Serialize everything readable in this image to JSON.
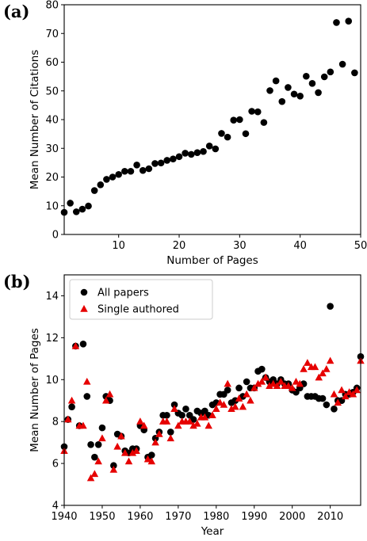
{
  "chart_data": [
    {
      "type": "scatter",
      "panel_label": "(a)",
      "xlabel": "Number of Pages",
      "ylabel": "Mean Number of Citations",
      "xlim": [
        1,
        50
      ],
      "ylim": [
        0,
        80
      ],
      "xticks": [
        10,
        20,
        30,
        40,
        50
      ],
      "yticks": [
        0,
        10,
        20,
        30,
        40,
        50,
        60,
        70,
        80
      ],
      "grid": false,
      "series": [
        {
          "color": "#000000",
          "marker": "circle",
          "points": [
            [
              1,
              7.7
            ],
            [
              2,
              10.9
            ],
            [
              3,
              7.9
            ],
            [
              4,
              8.8
            ],
            [
              5,
              9.9
            ],
            [
              6,
              15.3
            ],
            [
              7,
              17.3
            ],
            [
              8,
              19.2
            ],
            [
              9,
              20.0
            ],
            [
              10,
              20.9
            ],
            [
              11,
              22.0
            ],
            [
              12,
              22.0
            ],
            [
              13,
              24.2
            ],
            [
              14,
              22.3
            ],
            [
              15,
              22.9
            ],
            [
              16,
              24.7
            ],
            [
              17,
              24.9
            ],
            [
              18,
              25.8
            ],
            [
              19,
              26.3
            ],
            [
              20,
              27.1
            ],
            [
              21,
              28.3
            ],
            [
              22,
              27.9
            ],
            [
              23,
              28.5
            ],
            [
              24,
              28.9
            ],
            [
              25,
              30.8
            ],
            [
              26,
              29.8
            ],
            [
              27,
              35.2
            ],
            [
              28,
              33.9
            ],
            [
              29,
              39.8
            ],
            [
              30,
              40.0
            ],
            [
              31,
              35.1
            ],
            [
              32,
              42.9
            ],
            [
              33,
              42.7
            ],
            [
              34,
              39.0
            ],
            [
              35,
              50.1
            ],
            [
              36,
              53.5
            ],
            [
              37,
              46.3
            ],
            [
              38,
              51.2
            ],
            [
              39,
              48.9
            ],
            [
              40,
              48.2
            ],
            [
              41,
              55.1
            ],
            [
              42,
              52.6
            ],
            [
              43,
              49.4
            ],
            [
              44,
              54.9
            ],
            [
              45,
              56.6
            ],
            [
              46,
              73.8
            ],
            [
              47,
              59.3
            ],
            [
              48,
              74.3
            ],
            [
              49,
              56.3
            ]
          ]
        }
      ]
    },
    {
      "type": "scatter",
      "panel_label": "(b)",
      "xlabel": "Year",
      "ylabel": "Mean Number of Pages",
      "xlim": [
        1940,
        2018
      ],
      "ylim": [
        4,
        15
      ],
      "xticks": [
        1940,
        1950,
        1960,
        1970,
        1980,
        1990,
        2000,
        2010
      ],
      "yticks": [
        4,
        6,
        8,
        10,
        12,
        14
      ],
      "grid": false,
      "legend_position": "top-left",
      "series": [
        {
          "name": "All papers",
          "color": "#000000",
          "marker": "circle",
          "points": [
            [
              1940,
              6.8
            ],
            [
              1941,
              8.1
            ],
            [
              1942,
              8.7
            ],
            [
              1943,
              11.6
            ],
            [
              1944,
              7.8
            ],
            [
              1945,
              11.7
            ],
            [
              1946,
              9.2
            ],
            [
              1947,
              6.9
            ],
            [
              1948,
              6.3
            ],
            [
              1949,
              6.9
            ],
            [
              1950,
              7.7
            ],
            [
              1951,
              9.2
            ],
            [
              1952,
              9.0
            ],
            [
              1953,
              5.9
            ],
            [
              1954,
              7.4
            ],
            [
              1955,
              7.3
            ],
            [
              1956,
              6.6
            ],
            [
              1957,
              6.5
            ],
            [
              1958,
              6.7
            ],
            [
              1959,
              6.7
            ],
            [
              1960,
              7.8
            ],
            [
              1961,
              7.6
            ],
            [
              1962,
              6.3
            ],
            [
              1963,
              6.4
            ],
            [
              1964,
              7.2
            ],
            [
              1965,
              7.5
            ],
            [
              1966,
              8.3
            ],
            [
              1967,
              8.3
            ],
            [
              1968,
              7.5
            ],
            [
              1969,
              8.8
            ],
            [
              1970,
              8.4
            ],
            [
              1971,
              8.3
            ],
            [
              1972,
              8.6
            ],
            [
              1973,
              8.3
            ],
            [
              1974,
              8.1
            ],
            [
              1975,
              8.5
            ],
            [
              1976,
              8.4
            ],
            [
              1977,
              8.5
            ],
            [
              1978,
              8.3
            ],
            [
              1979,
              8.8
            ],
            [
              1980,
              8.9
            ],
            [
              1981,
              9.3
            ],
            [
              1982,
              9.3
            ],
            [
              1983,
              9.5
            ],
            [
              1984,
              8.9
            ],
            [
              1985,
              9.0
            ],
            [
              1986,
              9.6
            ],
            [
              1987,
              9.2
            ],
            [
              1988,
              9.9
            ],
            [
              1989,
              9.6
            ],
            [
              1990,
              9.6
            ],
            [
              1991,
              10.4
            ],
            [
              1992,
              10.5
            ],
            [
              1993,
              10.1
            ],
            [
              1994,
              9.9
            ],
            [
              1995,
              10.0
            ],
            [
              1996,
              9.8
            ],
            [
              1997,
              10.0
            ],
            [
              1998,
              9.8
            ],
            [
              1999,
              9.8
            ],
            [
              2000,
              9.5
            ],
            [
              2001,
              9.4
            ],
            [
              2002,
              9.6
            ],
            [
              2003,
              9.8
            ],
            [
              2004,
              9.2
            ],
            [
              2005,
              9.2
            ],
            [
              2006,
              9.2
            ],
            [
              2007,
              9.1
            ],
            [
              2008,
              9.1
            ],
            [
              2009,
              8.8
            ],
            [
              2010,
              13.5
            ],
            [
              2011,
              8.6
            ],
            [
              2012,
              9.0
            ],
            [
              2013,
              9.0
            ],
            [
              2014,
              9.3
            ],
            [
              2015,
              9.3
            ],
            [
              2016,
              9.4
            ],
            [
              2017,
              9.6
            ],
            [
              2018,
              11.1
            ]
          ]
        },
        {
          "name": "Single authored",
          "color": "#e60000",
          "marker": "triangle",
          "points": [
            [
              1940,
              6.6
            ],
            [
              1941,
              8.1
            ],
            [
              1942,
              9.0
            ],
            [
              1943,
              11.6
            ],
            [
              1944,
              7.8
            ],
            [
              1945,
              7.8
            ],
            [
              1946,
              9.9
            ],
            [
              1947,
              5.3
            ],
            [
              1948,
              5.5
            ],
            [
              1949,
              6.1
            ],
            [
              1950,
              7.2
            ],
            [
              1951,
              9.0
            ],
            [
              1952,
              9.3
            ],
            [
              1953,
              5.7
            ],
            [
              1954,
              6.8
            ],
            [
              1955,
              7.3
            ],
            [
              1956,
              6.5
            ],
            [
              1957,
              6.1
            ],
            [
              1958,
              6.5
            ],
            [
              1959,
              6.6
            ],
            [
              1960,
              8.0
            ],
            [
              1961,
              7.8
            ],
            [
              1962,
              6.2
            ],
            [
              1963,
              6.1
            ],
            [
              1964,
              7.0
            ],
            [
              1965,
              7.4
            ],
            [
              1966,
              8.0
            ],
            [
              1967,
              8.0
            ],
            [
              1968,
              7.2
            ],
            [
              1969,
              8.6
            ],
            [
              1970,
              7.8
            ],
            [
              1971,
              8.0
            ],
            [
              1972,
              8.0
            ],
            [
              1973,
              8.0
            ],
            [
              1974,
              7.8
            ],
            [
              1975,
              7.9
            ],
            [
              1976,
              8.2
            ],
            [
              1977,
              8.2
            ],
            [
              1978,
              7.8
            ],
            [
              1979,
              8.3
            ],
            [
              1980,
              8.6
            ],
            [
              1981,
              8.9
            ],
            [
              1982,
              8.8
            ],
            [
              1983,
              9.8
            ],
            [
              1984,
              8.6
            ],
            [
              1985,
              8.7
            ],
            [
              1986,
              9.1
            ],
            [
              1987,
              8.7
            ],
            [
              1988,
              9.3
            ],
            [
              1989,
              9.0
            ],
            [
              1990,
              9.6
            ],
            [
              1991,
              9.8
            ],
            [
              1992,
              9.9
            ],
            [
              1993,
              10.1
            ],
            [
              1994,
              9.7
            ],
            [
              1995,
              9.8
            ],
            [
              1996,
              9.7
            ],
            [
              1997,
              9.9
            ],
            [
              1998,
              9.7
            ],
            [
              1999,
              9.7
            ],
            [
              2000,
              9.6
            ],
            [
              2001,
              9.9
            ],
            [
              2002,
              9.8
            ],
            [
              2003,
              10.5
            ],
            [
              2004,
              10.8
            ],
            [
              2005,
              10.6
            ],
            [
              2006,
              10.6
            ],
            [
              2007,
              10.1
            ],
            [
              2008,
              10.3
            ],
            [
              2009,
              10.5
            ],
            [
              2010,
              10.9
            ],
            [
              2011,
              9.3
            ],
            [
              2012,
              8.9
            ],
            [
              2013,
              9.5
            ],
            [
              2014,
              9.2
            ],
            [
              2015,
              9.4
            ],
            [
              2016,
              9.3
            ],
            [
              2017,
              9.5
            ],
            [
              2018,
              10.9
            ]
          ]
        }
      ]
    }
  ]
}
